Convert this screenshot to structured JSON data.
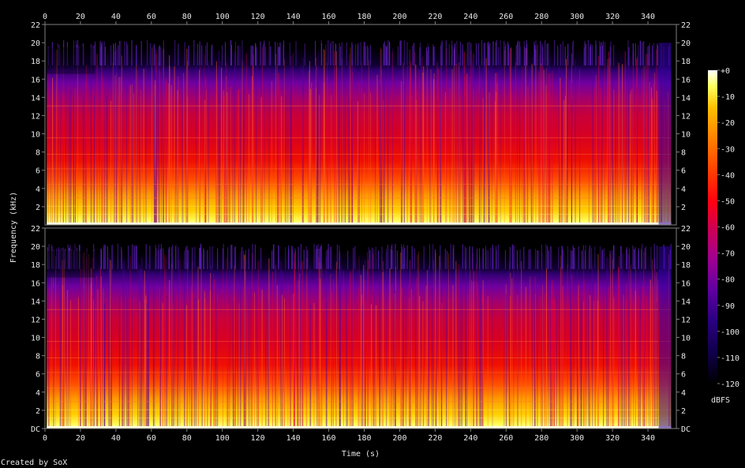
{
  "chart_data": {
    "type": "heatmap",
    "title": "",
    "xlabel": "Time (s)",
    "ylabel": "Frequency (kHz)",
    "colorbar_label": "dBFS",
    "credit": "Created by SoX",
    "xlim": [
      0,
      356
    ],
    "ylim": [
      0,
      22
    ],
    "x_ticks": [
      0,
      20,
      40,
      60,
      80,
      100,
      120,
      140,
      160,
      180,
      200,
      220,
      240,
      260,
      280,
      300,
      320,
      340
    ],
    "x_tick_labels": [
      "0",
      "20",
      "40",
      "60",
      "80",
      "100",
      "120",
      "140",
      "160",
      "180",
      "200",
      "220",
      "240",
      "260",
      "280",
      "300",
      "320",
      "340"
    ],
    "y_ticks": [
      0,
      2,
      4,
      6,
      8,
      10,
      12,
      14,
      16,
      18,
      20,
      22
    ],
    "y_tick_labels": [
      "DC",
      "2",
      "4",
      "6",
      "8",
      "10",
      "12",
      "14",
      "16",
      "18",
      "20",
      "22"
    ],
    "colorbar_ticks": [
      0,
      -10,
      -20,
      -30,
      -40,
      -50,
      -60,
      -70,
      -80,
      -90,
      -100,
      -110,
      -120
    ],
    "colorbar_tick_labels": [
      "+0",
      "-10",
      "-20",
      "-30",
      "-40",
      "-50",
      "-60",
      "-70",
      "-80",
      "-90",
      "-100",
      "-110",
      "-120"
    ],
    "colorbar_range": [
      -120,
      0
    ],
    "colors": {
      "background": "#000000",
      "text": "#e8e8e8",
      "frame": "#808080"
    },
    "colormap": [
      "#000000",
      "#1a0033",
      "#3a0080",
      "#8000a0",
      "#c0007a",
      "#ff0000",
      "#ff6000",
      "#ffb000",
      "#ffff40",
      "#ffffff"
    ],
    "series": [
      {
        "channel": 1,
        "approx_level_by_frequency_khz": [
          {
            "freq": 1,
            "db": -15
          },
          {
            "freq": 2,
            "db": -22
          },
          {
            "freq": 4,
            "db": -30
          },
          {
            "freq": 6,
            "db": -40
          },
          {
            "freq": 8,
            "db": -48
          },
          {
            "freq": 10,
            "db": -52
          },
          {
            "freq": 12,
            "db": -56
          },
          {
            "freq": 14,
            "db": -60
          },
          {
            "freq": 16,
            "db": -68
          },
          {
            "freq": 18,
            "db": -80
          },
          {
            "freq": 20,
            "db": -105
          },
          {
            "freq": 22,
            "db": -120
          }
        ],
        "cutoff_khz": 19.5,
        "signal_start_s": 1,
        "signal_end_s": 353
      },
      {
        "channel": 2,
        "approx_level_by_frequency_khz": [
          {
            "freq": 1,
            "db": -15
          },
          {
            "freq": 2,
            "db": -22
          },
          {
            "freq": 4,
            "db": -30
          },
          {
            "freq": 6,
            "db": -40
          },
          {
            "freq": 8,
            "db": -48
          },
          {
            "freq": 10,
            "db": -52
          },
          {
            "freq": 12,
            "db": -56
          },
          {
            "freq": 14,
            "db": -60
          },
          {
            "freq": 16,
            "db": -68
          },
          {
            "freq": 18,
            "db": -80
          },
          {
            "freq": 20,
            "db": -105
          },
          {
            "freq": 22,
            "db": -120
          }
        ],
        "cutoff_khz": 19.5,
        "signal_start_s": 1,
        "signal_end_s": 353
      }
    ]
  }
}
